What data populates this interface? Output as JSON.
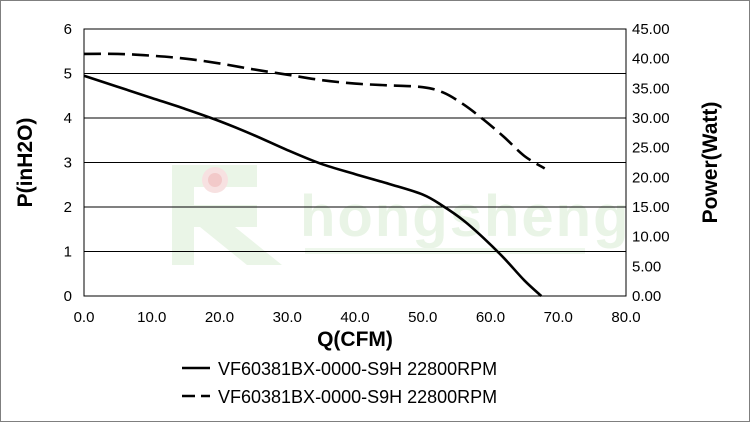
{
  "chart_data": {
    "type": "line",
    "xlabel": "Q(CFM)",
    "ylabel": "P(inH2O)",
    "y2label": "Power(Watt)",
    "xlim": [
      0,
      80
    ],
    "ylim": [
      0,
      6
    ],
    "y2lim": [
      0,
      45
    ],
    "x_ticks": [
      "0.0",
      "10.0",
      "20.0",
      "30.0",
      "40.0",
      "50.0",
      "60.0",
      "70.0",
      "80.0"
    ],
    "y_ticks": [
      "0",
      "1",
      "2",
      "3",
      "4",
      "5",
      "6"
    ],
    "y2_ticks": [
      "0.00",
      "5.00",
      "10.00",
      "15.00",
      "20.00",
      "25.00",
      "30.00",
      "35.00",
      "40.00",
      "45.00"
    ],
    "grid": "horizontal",
    "series": [
      {
        "name": "VF60381BX-0000-S9H 22800RPM",
        "axis": "left",
        "style": "solid",
        "x": [
          0,
          5,
          10,
          15,
          20,
          25,
          30,
          35,
          40,
          45,
          50,
          53,
          56,
          59,
          62,
          65,
          67.5
        ],
        "y": [
          4.95,
          4.7,
          4.45,
          4.2,
          3.93,
          3.62,
          3.28,
          2.97,
          2.74,
          2.52,
          2.28,
          2.02,
          1.7,
          1.3,
          0.85,
          0.35,
          0.0
        ]
      },
      {
        "name": "VF60381BX-0000-S9H 22800RPM",
        "axis": "right",
        "style": "dashed",
        "x": [
          0,
          5,
          10,
          15,
          20,
          25,
          30,
          35,
          40,
          45,
          50,
          53,
          56,
          59,
          62,
          65,
          68
        ],
        "y": [
          40.8,
          40.8,
          40.5,
          40.0,
          39.2,
          38.2,
          37.3,
          36.4,
          35.8,
          35.5,
          35.2,
          34.3,
          32.3,
          29.7,
          26.8,
          23.6,
          21.5
        ]
      }
    ],
    "legend_position": "bottom"
  },
  "watermark": {
    "text": "hongsheng"
  }
}
